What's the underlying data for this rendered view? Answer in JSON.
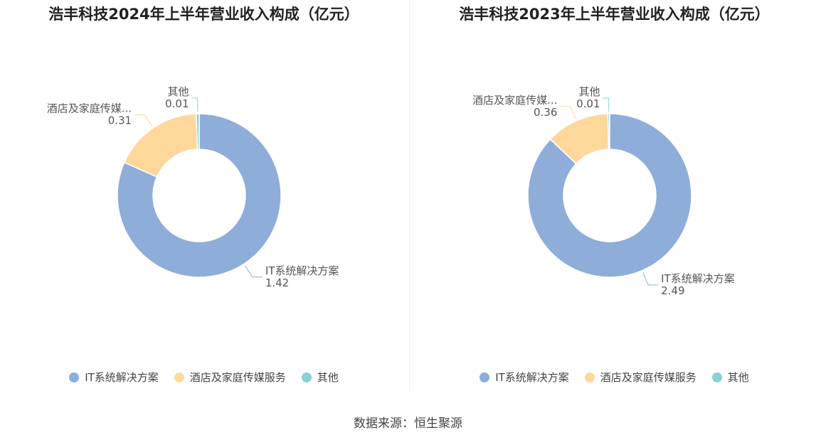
{
  "colors": {
    "it": "#8eadd9",
    "hotel": "#fdd89a",
    "other": "#86d2d6"
  },
  "legend": [
    "IT系统解决方案",
    "酒店及家庭传媒服务",
    "其他"
  ],
  "source": "数据来源：恒生聚源",
  "chart_data": [
    {
      "type": "pie",
      "title": "浩丰科技2024年上半年营业收入构成（亿元）",
      "categories": [
        "IT系统解决方案",
        "酒店及家庭传媒服务",
        "其他"
      ],
      "values": [
        1.42,
        0.31,
        0.01
      ],
      "slice_labels": [
        "IT系统解决方案",
        "酒店及家庭传媒...",
        "其他"
      ],
      "value_labels": [
        "1.42",
        "0.31",
        "0.01"
      ],
      "legend_position": "bottom"
    },
    {
      "type": "pie",
      "title": "浩丰科技2023年上半年营业收入构成（亿元）",
      "categories": [
        "IT系统解决方案",
        "酒店及家庭传媒服务",
        "其他"
      ],
      "values": [
        2.49,
        0.36,
        0.01
      ],
      "slice_labels": [
        "IT系统解决方案",
        "酒店及家庭传媒...",
        "其他"
      ],
      "value_labels": [
        "2.49",
        "0.36",
        "0.01"
      ],
      "legend_position": "bottom"
    }
  ]
}
